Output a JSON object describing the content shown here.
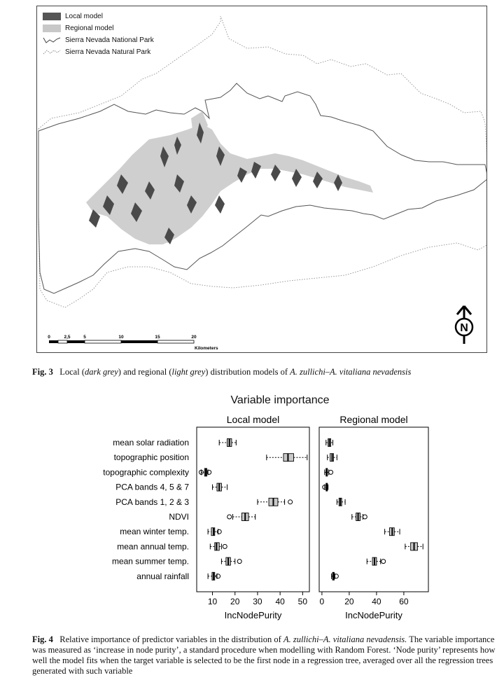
{
  "figure3": {
    "legend": {
      "local_model": "Local model",
      "regional_model": "Regional model",
      "national_park": "Sierra Nevada National Park",
      "natural_park": "Sierra Nevada Natural Park"
    },
    "scalebar": {
      "ticks": [
        "0",
        "2,5",
        "5",
        "10",
        "15",
        "20"
      ],
      "unit": "Kilometers"
    },
    "north_label": "N",
    "caption_label": "Fig. 3",
    "caption_part1": "Local (",
    "caption_dark": "dark grey",
    "caption_part2": ") and regional (",
    "caption_light": "light grey",
    "caption_part3": ") distribution models of ",
    "caption_species": "A. zullichi–A. vitaliana nevadensis"
  },
  "figure4": {
    "caption_label": "Fig. 4",
    "caption_part1": "Relative importance of predictor variables in the distribution of ",
    "caption_species": "A. zullichi–A. vitaliana nevadensis.",
    "caption_part2": "The variable importance was measured as ‘increase in node purity’, a standard procedure when modelling with Random Forest. ‘Node purity’ represents how well the model fits when the target variable is selected to be the first node in a regression tree, averaged over all the regression trees generated with such variable"
  },
  "chart_data": [
    {
      "type": "boxplot",
      "title": "Variable importance",
      "panel_title": "Local model",
      "xlabel": "IncNodePurity",
      "xlim": [
        3,
        53
      ],
      "xticks": [
        10,
        20,
        30,
        40,
        50
      ],
      "categories": [
        "mean solar radiation",
        "topographic position",
        "topographic complexity",
        "PCA bands 4, 5 & 7",
        "PCA bands 1, 2 & 3",
        "NDVI",
        "mean winter temp.",
        "mean annual temp.",
        "mean summer temp.",
        "annual rainfall"
      ],
      "boxes": [
        {
          "min": 13,
          "q1": 16.5,
          "median": 17.5,
          "q3": 18.5,
          "max": 20.5,
          "outliers": []
        },
        {
          "min": 34,
          "q1": 41.5,
          "median": 43.5,
          "q3": 46,
          "max": 52,
          "outliers": []
        },
        {
          "min": 5,
          "q1": 6.5,
          "median": 7,
          "q3": 7.5,
          "max": 8,
          "outliers": [
            5,
            8.5
          ]
        },
        {
          "min": 10,
          "q1": 12,
          "median": 13,
          "q3": 14,
          "max": 16.5,
          "outliers": []
        },
        {
          "min": 30,
          "q1": 35,
          "median": 37,
          "q3": 39,
          "max": 42,
          "outliers": [
            44.5
          ]
        },
        {
          "min": 19,
          "q1": 23,
          "median": 24.5,
          "q3": 26,
          "max": 29,
          "outliers": [
            17.5
          ]
        },
        {
          "min": 8,
          "q1": 9.5,
          "median": 10.5,
          "q3": 11,
          "max": 12.5,
          "outliers": [
            13
          ]
        },
        {
          "min": 9,
          "q1": 11,
          "median": 11.8,
          "q3": 13,
          "max": 14,
          "outliers": [
            15.5
          ]
        },
        {
          "min": 14,
          "q1": 16,
          "median": 17,
          "q3": 18,
          "max": 20,
          "outliers": [
            22
          ]
        },
        {
          "min": 8,
          "q1": 9.8,
          "median": 10.5,
          "q3": 11,
          "max": 12,
          "outliers": [
            12.5
          ]
        }
      ]
    },
    {
      "type": "boxplot",
      "panel_title": "Regional model",
      "xlabel": "IncNodePurity",
      "xlim": [
        -2,
        78
      ],
      "xticks": [
        0,
        20,
        40,
        60
      ],
      "categories": [
        "mean solar radiation",
        "topographic position",
        "topographic complexity",
        "PCA bands 4, 5 & 7",
        "PCA bands 1, 2 & 3",
        "NDVI",
        "mean winter temp.",
        "mean annual temp.",
        "mean summer temp.",
        "annual rainfall"
      ],
      "boxes": [
        {
          "min": 3,
          "q1": 4.5,
          "median": 5.5,
          "q3": 6.5,
          "max": 8,
          "outliers": []
        },
        {
          "min": 4,
          "q1": 6,
          "median": 7.5,
          "q3": 8.5,
          "max": 11,
          "outliers": []
        },
        {
          "min": 2,
          "q1": 3,
          "median": 3.5,
          "q3": 4,
          "max": 5,
          "outliers": [
            6.5
          ]
        },
        {
          "min": 2,
          "q1": 3,
          "median": 3.5,
          "q3": 4,
          "max": 4.5,
          "outliers": [
            2
          ]
        },
        {
          "min": 11,
          "q1": 12.5,
          "median": 13.5,
          "q3": 14.5,
          "max": 17,
          "outliers": []
        },
        {
          "min": 22,
          "q1": 25,
          "median": 26.5,
          "q3": 28,
          "max": 30,
          "outliers": [
            31.5
          ]
        },
        {
          "min": 46,
          "q1": 49.5,
          "median": 51.5,
          "q3": 53,
          "max": 57,
          "outliers": []
        },
        {
          "min": 61,
          "q1": 65,
          "median": 67.5,
          "q3": 70,
          "max": 74,
          "outliers": []
        },
        {
          "min": 33,
          "q1": 37,
          "median": 38.5,
          "q3": 40,
          "max": 43,
          "outliers": [
            45
          ]
        },
        {
          "min": 7,
          "q1": 7.8,
          "median": 8.3,
          "q3": 9,
          "max": 9.5,
          "outliers": [
            10.5
          ]
        }
      ]
    }
  ]
}
